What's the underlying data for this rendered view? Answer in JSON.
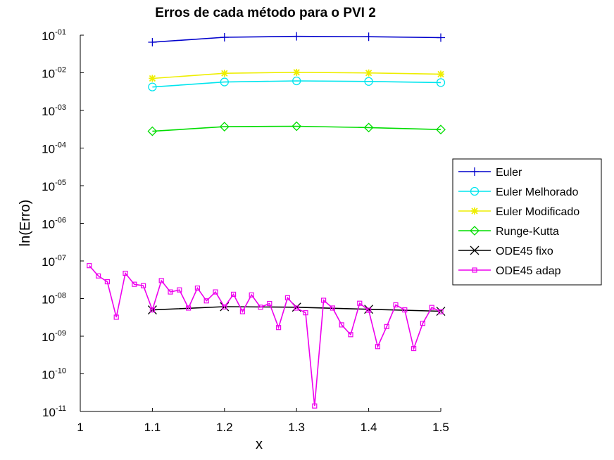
{
  "chart_data": {
    "type": "line",
    "title": "Erros de cada método para o PVI 2",
    "xlabel": "x",
    "ylabel": "ln(Erro)",
    "xlim": [
      1,
      1.5
    ],
    "ylim_log10": [
      -11,
      -1
    ],
    "y_scale": "log",
    "grid": false,
    "legend_position": "right",
    "x_ticks": [
      "1",
      "1.1",
      "1.2",
      "1.3",
      "1.4",
      "1.5"
    ],
    "x_tick_values": [
      1,
      1.1,
      1.2,
      1.3,
      1.4,
      1.5
    ],
    "y_ticks": [
      {
        "base": "10",
        "exp": "-01",
        "value": 0.1
      },
      {
        "base": "10",
        "exp": "-02",
        "value": 0.01
      },
      {
        "base": "10",
        "exp": "-03",
        "value": 0.001
      },
      {
        "base": "10",
        "exp": "-04",
        "value": 0.0001
      },
      {
        "base": "10",
        "exp": "-05",
        "value": 1e-05
      },
      {
        "base": "10",
        "exp": "-06",
        "value": 1e-06
      },
      {
        "base": "10",
        "exp": "-07",
        "value": 1e-07
      },
      {
        "base": "10",
        "exp": "-08",
        "value": 1e-08
      },
      {
        "base": "10",
        "exp": "-09",
        "value": 1e-09
      },
      {
        "base": "10",
        "exp": "-10",
        "value": 1e-10
      },
      {
        "base": "10",
        "exp": "-11",
        "value": 1e-11
      }
    ],
    "series": [
      {
        "name": "Euler",
        "color": "#0000cc",
        "marker": "plus",
        "x": [
          1.1,
          1.2,
          1.3,
          1.4,
          1.5
        ],
        "y": [
          0.065,
          0.088,
          0.093,
          0.091,
          0.086
        ]
      },
      {
        "name": "Euler Melhorado",
        "color": "#00e5ee",
        "marker": "circle",
        "x": [
          1.1,
          1.2,
          1.3,
          1.4,
          1.5
        ],
        "y": [
          0.0042,
          0.0057,
          0.0061,
          0.0059,
          0.0055
        ]
      },
      {
        "name": "Euler Modificado",
        "color": "#eeee00",
        "marker": "star",
        "x": [
          1.1,
          1.2,
          1.3,
          1.4,
          1.5
        ],
        "y": [
          0.0071,
          0.0097,
          0.0103,
          0.0099,
          0.0092
        ]
      },
      {
        "name": "Runge-Kutta",
        "color": "#00dd00",
        "marker": "diamond",
        "x": [
          1.1,
          1.2,
          1.3,
          1.4,
          1.5
        ],
        "y": [
          0.00028,
          0.00037,
          0.00038,
          0.00035,
          0.00031
        ]
      },
      {
        "name": "ODE45 fixo",
        "color": "#000000",
        "marker": "x",
        "x": [
          1.1,
          1.2,
          1.3,
          1.4,
          1.5
        ],
        "y": [
          5e-09,
          6.1e-09,
          5.9e-09,
          5.2e-09,
          4.6e-09
        ]
      },
      {
        "name": "ODE45 adap",
        "color": "#ee00ee",
        "marker": "square",
        "x": [
          1.0125,
          1.025,
          1.0375,
          1.05,
          1.0625,
          1.075,
          1.0875,
          1.1,
          1.1125,
          1.125,
          1.1375,
          1.15,
          1.1625,
          1.175,
          1.1875,
          1.2,
          1.2125,
          1.225,
          1.2375,
          1.25,
          1.2625,
          1.275,
          1.2875,
          1.3,
          1.3125,
          1.325,
          1.3375,
          1.35,
          1.3625,
          1.375,
          1.3875,
          1.4,
          1.4125,
          1.425,
          1.4375,
          1.45,
          1.4625,
          1.475,
          1.4875,
          1.5
        ],
        "y": [
          7.5e-08,
          4e-08,
          2.8e-08,
          3.2e-09,
          4.7e-08,
          2.4e-08,
          2.2e-08,
          5e-09,
          3e-08,
          1.5e-08,
          1.7e-08,
          5.6e-09,
          1.9e-08,
          8.7e-09,
          1.5e-08,
          6e-09,
          1.3e-08,
          4.5e-09,
          1.25e-08,
          5.9e-09,
          7.4e-09,
          1.7e-09,
          1.05e-08,
          5.6e-09,
          4.2e-09,
          1.4e-11,
          9e-09,
          5.6e-09,
          2e-09,
          1.1e-09,
          7.5e-09,
          4.9e-09,
          5.3e-10,
          1.8e-09,
          6.8e-09,
          5e-09,
          4.7e-10,
          2.2e-09,
          5.8e-09,
          4.5e-09
        ]
      }
    ]
  }
}
